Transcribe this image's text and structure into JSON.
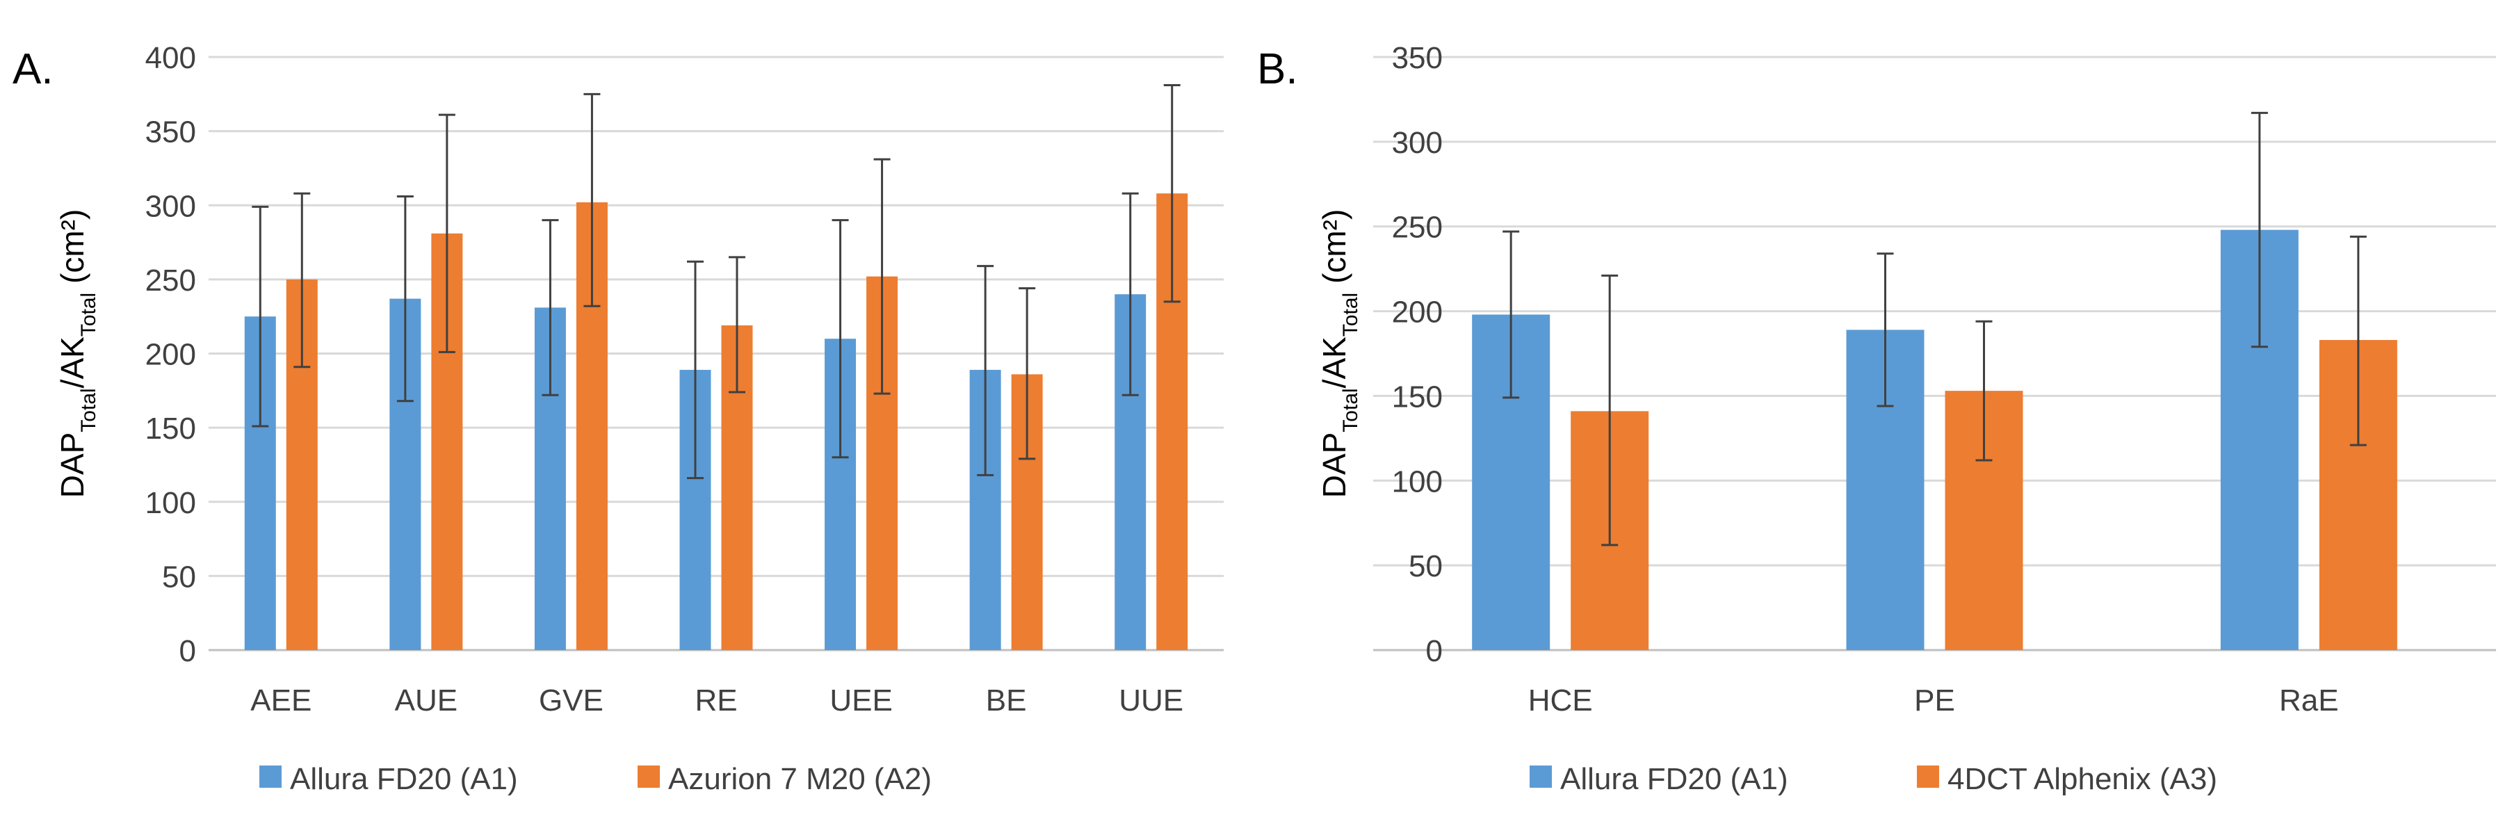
{
  "colors": {
    "series1": "#5b9bd5",
    "series2": "#ed7d31",
    "grid": "#d9d9d9",
    "axis_text": "#404040",
    "error_bar": "#404040"
  },
  "chart_data": [
    {
      "type": "bar",
      "panel_label": "A.",
      "ylabel_main": "DAP",
      "ylabel_sub1": "Total",
      "ylabel_mid": "/AK",
      "ylabel_sub2": "Total",
      "ylabel_unit": " (cm²)",
      "ylim": [
        0,
        400
      ],
      "yticks": [
        0,
        50,
        100,
        150,
        200,
        250,
        300,
        350,
        400
      ],
      "grid": true,
      "legend_position": "bottom",
      "categories": [
        "AEE",
        "AUE",
        "GVE",
        "RE",
        "UEE",
        "BE",
        "UUE"
      ],
      "series": [
        {
          "name": "Allura FD20 (A1)",
          "values": [
            225,
            237,
            231,
            189,
            210,
            189,
            240
          ],
          "err_low": [
            151,
            168,
            172,
            116,
            130,
            118,
            172
          ],
          "err_high": [
            299,
            306,
            290,
            262,
            290,
            259,
            308
          ]
        },
        {
          "name": "Azurion 7 M20 (A2)",
          "values": [
            250,
            281,
            302,
            219,
            252,
            186,
            308
          ],
          "err_low": [
            191,
            201,
            232,
            174,
            173,
            129,
            235
          ],
          "err_high": [
            308,
            361,
            375,
            265,
            331,
            244,
            381
          ]
        }
      ]
    },
    {
      "type": "bar",
      "panel_label": "B.",
      "ylabel_main": "DAP",
      "ylabel_sub1": "Total",
      "ylabel_mid": "/AK",
      "ylabel_sub2": "Total",
      "ylabel_unit": " (cm²)",
      "ylim": [
        0,
        350
      ],
      "yticks": [
        0,
        50,
        100,
        150,
        200,
        250,
        300,
        350
      ],
      "grid": true,
      "legend_position": "bottom",
      "categories": [
        "HCE",
        "PE",
        "RaE"
      ],
      "series": [
        {
          "name": "Allura FD20 (A1)",
          "values": [
            198,
            189,
            248
          ],
          "err_low": [
            149,
            144,
            179
          ],
          "err_high": [
            247,
            234,
            317
          ]
        },
        {
          "name": "4DCT Alphenix (A3)",
          "values": [
            141,
            153,
            183
          ],
          "err_low": [
            62,
            112,
            121
          ],
          "err_high": [
            221,
            194,
            244
          ]
        }
      ]
    }
  ]
}
